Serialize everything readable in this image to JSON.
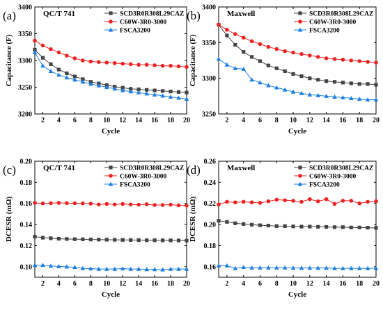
{
  "chart_data": [
    {
      "panel_label": "(a)",
      "title": "QC/T 741",
      "type": "line",
      "xlabel": "Cycle",
      "ylabel": "Capacitance (F)",
      "xlim": [
        1,
        20
      ],
      "ylim": [
        3200,
        3400
      ],
      "xticks": [
        "2",
        "4",
        "6",
        "8",
        "10",
        "12",
        "14",
        "16",
        "18",
        "20"
      ],
      "yticks": [
        "3200",
        "3250",
        "3300",
        "3350",
        "3400"
      ],
      "legend_position": "top-right",
      "x": [
        1,
        2,
        3,
        4,
        5,
        6,
        7,
        8,
        9,
        10,
        11,
        12,
        13,
        14,
        15,
        16,
        17,
        18,
        19,
        20
      ],
      "series": [
        {
          "name": "SCD3R0R308L29CAZ",
          "color": "#444444",
          "marker": "square",
          "values": [
            3320,
            3305,
            3293,
            3283,
            3276,
            3270,
            3265,
            3260,
            3257,
            3254,
            3251,
            3249,
            3247,
            3246,
            3245,
            3244,
            3243,
            3242,
            3241,
            3240
          ]
        },
        {
          "name": "C60W-3R0-3000",
          "color": "#ee2222",
          "marker": "circle",
          "values": [
            3337,
            3328,
            3321,
            3315,
            3309,
            3304,
            3300,
            3298,
            3297,
            3296,
            3295,
            3294,
            3293,
            3292,
            3292,
            3291,
            3290,
            3290,
            3289,
            3288
          ]
        },
        {
          "name": "FSCA3200",
          "color": "#1e7fe0",
          "marker": "triangle",
          "values": [
            3315,
            3290,
            3280,
            3273,
            3268,
            3264,
            3260,
            3256,
            3253,
            3250,
            3247,
            3244,
            3242,
            3240,
            3238,
            3236,
            3234,
            3232,
            3230,
            3228
          ]
        }
      ]
    },
    {
      "panel_label": "(b)",
      "title": "Maxwell",
      "type": "line",
      "xlabel": "Cycle",
      "ylabel": "Capacitance (F)",
      "xlim": [
        1,
        20
      ],
      "ylim": [
        3250,
        3400
      ],
      "xticks": [
        "2",
        "4",
        "6",
        "8",
        "10",
        "12",
        "14",
        "16",
        "18",
        "20"
      ],
      "yticks": [
        "3250",
        "3300",
        "3350",
        "3400"
      ],
      "legend_position": "top-right",
      "x": [
        1,
        2,
        3,
        4,
        5,
        6,
        7,
        8,
        9,
        10,
        11,
        12,
        13,
        14,
        15,
        16,
        17,
        18,
        19,
        20
      ],
      "series": [
        {
          "name": "SCD3R0R308L29CAZ",
          "color": "#444444",
          "marker": "square",
          "values": [
            3375,
            3360,
            3347,
            3337,
            3330,
            3324,
            3318,
            3314,
            3310,
            3306,
            3303,
            3300,
            3298,
            3296,
            3295,
            3294,
            3293,
            3292,
            3292,
            3291
          ]
        },
        {
          "name": "C60W-3R0-3000",
          "color": "#ee2222",
          "marker": "circle",
          "values": [
            3375,
            3368,
            3362,
            3357,
            3352,
            3348,
            3344,
            3341,
            3338,
            3336,
            3334,
            3332,
            3330,
            3328,
            3327,
            3326,
            3325,
            3324,
            3323,
            3322
          ]
        },
        {
          "name": "FSCA3200",
          "color": "#1e7fe0",
          "marker": "triangle",
          "values": [
            3327,
            3319,
            3314,
            3313,
            3298,
            3294,
            3290,
            3287,
            3284,
            3281,
            3279,
            3277,
            3276,
            3275,
            3274,
            3273,
            3272,
            3271,
            3270,
            3270
          ]
        }
      ]
    },
    {
      "panel_label": "(c)",
      "title": "QC/T 741",
      "type": "line",
      "xlabel": "Cycle",
      "ylabel": "DCESR (mΩ)",
      "xlim": [
        1,
        20
      ],
      "ylim": [
        0.09,
        0.2
      ],
      "xticks": [
        "2",
        "4",
        "6",
        "8",
        "10",
        "12",
        "14",
        "16",
        "18",
        "20"
      ],
      "yticks": [
        "0.10",
        "0.12",
        "0.14",
        "0.16",
        "0.18",
        "0.20"
      ],
      "legend_position": "top-right",
      "x": [
        1,
        2,
        3,
        4,
        5,
        6,
        7,
        8,
        9,
        10,
        11,
        12,
        13,
        14,
        15,
        16,
        17,
        18,
        19,
        20
      ],
      "series": [
        {
          "name": "SCD3R0R308L29CAZ",
          "color": "#444444",
          "marker": "square",
          "values": [
            0.1285,
            0.1275,
            0.127,
            0.1265,
            0.1263,
            0.1261,
            0.126,
            0.1258,
            0.1257,
            0.1256,
            0.1255,
            0.1254,
            0.1253,
            0.1252,
            0.1251,
            0.1251,
            0.125,
            0.125,
            0.1249,
            0.1248
          ]
        },
        {
          "name": "C60W-3R0-3000",
          "color": "#ee2222",
          "marker": "circle",
          "values": [
            0.1605,
            0.16,
            0.1602,
            0.1605,
            0.1603,
            0.1601,
            0.16,
            0.1598,
            0.159,
            0.1595,
            0.159,
            0.1595,
            0.159,
            0.1588,
            0.1592,
            0.1585,
            0.1585,
            0.1588,
            0.1582,
            0.158
          ]
        },
        {
          "name": "FSCA3200",
          "color": "#1e7fe0",
          "marker": "triangle",
          "values": [
            0.1015,
            0.1015,
            0.1008,
            0.1003,
            0.1,
            0.0995,
            0.0985,
            0.0982,
            0.0978,
            0.0978,
            0.0978,
            0.0982,
            0.0978,
            0.0978,
            0.0975,
            0.0975,
            0.0972,
            0.0978,
            0.0978,
            0.0978
          ]
        }
      ]
    },
    {
      "panel_label": "(d)",
      "title": "Maxwell",
      "type": "line",
      "xlabel": "Cycle",
      "ylabel": "DCESR (mΩ)",
      "xlim": [
        1,
        20
      ],
      "ylim": [
        0.15,
        0.26
      ],
      "xticks": [
        "2",
        "4",
        "6",
        "8",
        "10",
        "12",
        "14",
        "16",
        "18",
        "20"
      ],
      "yticks": [
        "0.16",
        "0.18",
        "0.20",
        "0.22",
        "0.24",
        "0.26"
      ],
      "legend_position": "top-right",
      "x": [
        1,
        2,
        3,
        4,
        5,
        6,
        7,
        8,
        9,
        10,
        11,
        12,
        13,
        14,
        15,
        16,
        17,
        18,
        19,
        20
      ],
      "series": [
        {
          "name": "SCD3R0R308L29CAZ",
          "color": "#444444",
          "marker": "square",
          "values": [
            0.2035,
            0.2025,
            0.2012,
            0.2005,
            0.1998,
            0.1993,
            0.199,
            0.1985,
            0.1985,
            0.1982,
            0.198,
            0.198,
            0.1978,
            0.1977,
            0.1975,
            0.1975,
            0.1972,
            0.1972,
            0.197,
            0.1968
          ]
        },
        {
          "name": "C60W-3R0-3000",
          "color": "#ee2222",
          "marker": "circle",
          "values": [
            0.219,
            0.2215,
            0.221,
            0.2215,
            0.221,
            0.2205,
            0.222,
            0.2235,
            0.223,
            0.2225,
            0.2215,
            0.224,
            0.222,
            0.224,
            0.2195,
            0.2225,
            0.2225,
            0.22,
            0.2215,
            0.222
          ]
        },
        {
          "name": "FSCA3200",
          "color": "#1e7fe0",
          "marker": "triangle",
          "values": [
            0.161,
            0.161,
            0.1585,
            0.1595,
            0.159,
            0.159,
            0.159,
            0.159,
            0.159,
            0.1588,
            0.1588,
            0.1588,
            0.1588,
            0.1588,
            0.1585,
            0.1585,
            0.1585,
            0.1585,
            0.1585,
            0.1585
          ]
        }
      ]
    }
  ]
}
